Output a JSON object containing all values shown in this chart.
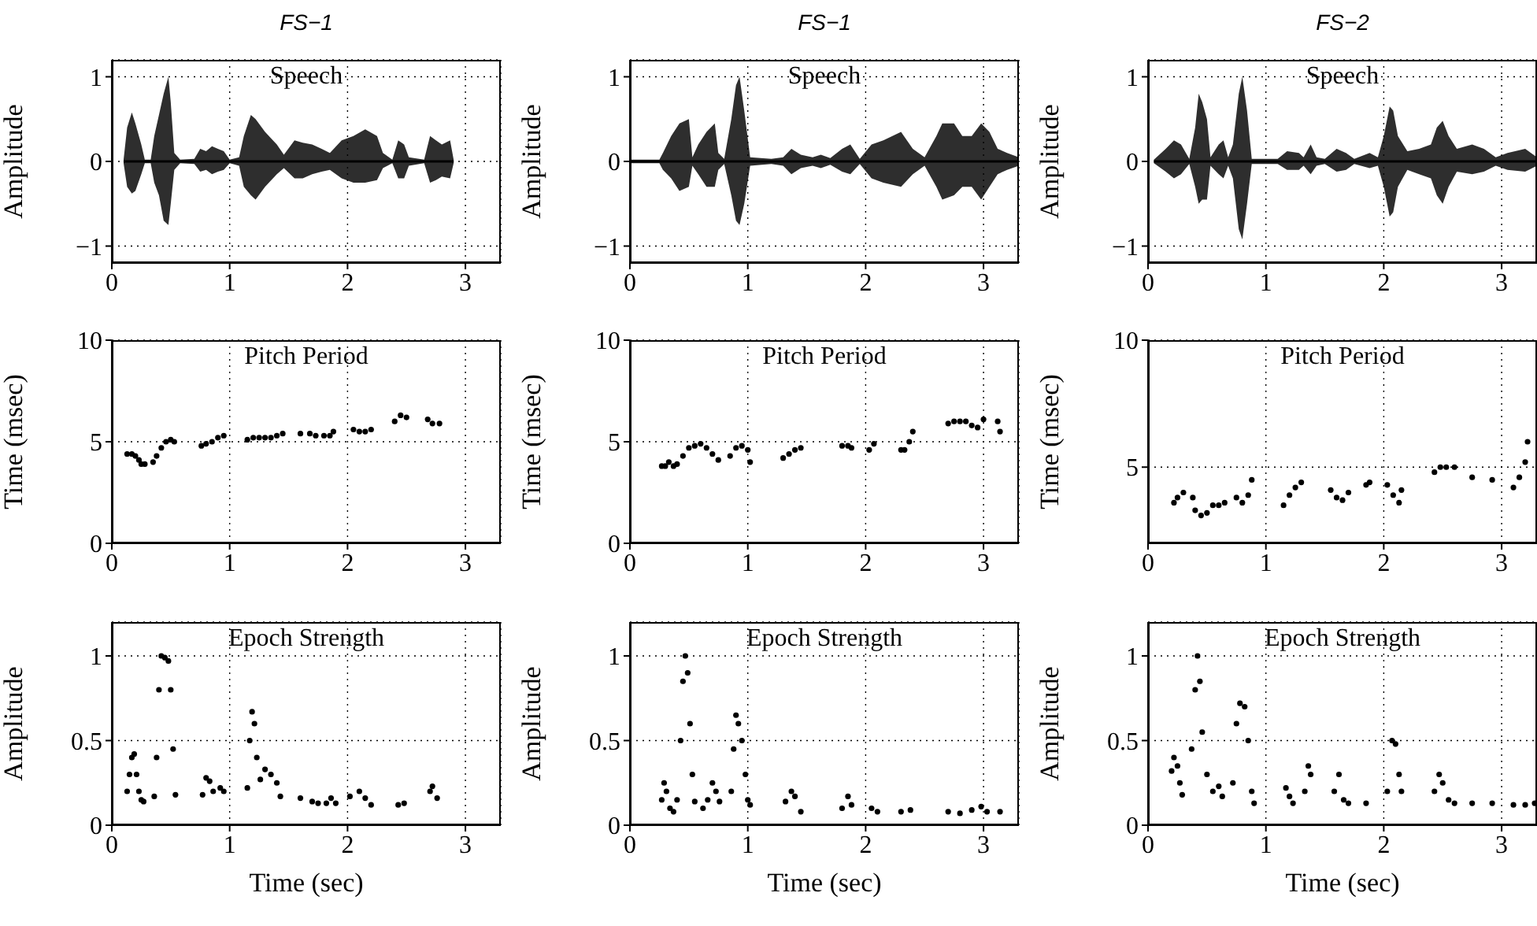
{
  "chart_data": [
    {
      "type": "line",
      "title": "FS−1",
      "ylabel": "Amplitude",
      "annotations": [
        "Speech"
      ],
      "xlim": [
        0,
        3.3
      ],
      "xticks": [
        0,
        1,
        2,
        3
      ],
      "ylim": [
        -1.2,
        1.2
      ],
      "yticks": [
        -1,
        0,
        1
      ],
      "grid": true,
      "series": [
        {
          "color": "#000000",
          "x": [
            0.1,
            0.13,
            0.17,
            0.2,
            0.25,
            0.28,
            0.33,
            0.36,
            0.4,
            0.44,
            0.48,
            0.5,
            0.53,
            0.58,
            0.7,
            0.75,
            0.8,
            0.85,
            0.9,
            0.95,
            1.0,
            1.08,
            1.12,
            1.18,
            1.22,
            1.3,
            1.4,
            1.46,
            1.55,
            1.62,
            1.7,
            1.78,
            1.85,
            1.95,
            2.05,
            2.15,
            2.25,
            2.3,
            2.38,
            2.43,
            2.48,
            2.52,
            2.65,
            2.7,
            2.75,
            2.8,
            2.87,
            2.9
          ],
          "values": [
            0,
            0,
            0,
            0,
            0,
            0,
            0,
            0,
            0,
            0,
            0,
            0,
            0,
            0,
            0,
            0,
            0,
            0,
            0,
            0,
            0,
            0,
            0,
            0,
            0,
            0,
            0,
            0,
            0,
            0,
            0,
            0,
            0,
            0,
            0,
            0,
            0,
            0,
            0,
            0,
            0,
            0,
            0,
            0,
            0,
            0,
            0,
            0
          ],
          "upper": [
            0.02,
            0.4,
            0.58,
            0.45,
            0.2,
            0.02,
            0.02,
            0.3,
            0.55,
            0.8,
            1.0,
            0.7,
            0.1,
            0.02,
            0.03,
            0.15,
            0.12,
            0.18,
            0.15,
            0.12,
            0.02,
            0.05,
            0.3,
            0.55,
            0.5,
            0.35,
            0.2,
            0.08,
            0.25,
            0.22,
            0.2,
            0.15,
            0.1,
            0.25,
            0.3,
            0.38,
            0.3,
            0.1,
            0.02,
            0.25,
            0.2,
            0.05,
            0.02,
            0.3,
            0.25,
            0.2,
            0.25,
            0.02
          ],
          "lower": [
            -0.02,
            -0.3,
            -0.38,
            -0.35,
            -0.15,
            -0.02,
            -0.02,
            -0.25,
            -0.4,
            -0.7,
            -0.75,
            -0.5,
            -0.1,
            -0.02,
            -0.03,
            -0.12,
            -0.1,
            -0.15,
            -0.12,
            -0.1,
            -0.02,
            -0.05,
            -0.3,
            -0.4,
            -0.45,
            -0.3,
            -0.15,
            -0.08,
            -0.2,
            -0.2,
            -0.15,
            -0.12,
            -0.1,
            -0.2,
            -0.25,
            -0.25,
            -0.22,
            -0.08,
            -0.02,
            -0.2,
            -0.2,
            -0.05,
            -0.02,
            -0.25,
            -0.22,
            -0.18,
            -0.2,
            -0.02
          ]
        }
      ]
    },
    {
      "type": "line",
      "title": "FS−1",
      "ylabel": "Amplitude",
      "annotations": [
        "Speech"
      ],
      "xlim": [
        0,
        3.3
      ],
      "xticks": [
        0,
        1,
        2,
        3
      ],
      "ylim": [
        -1.2,
        1.2
      ],
      "yticks": [
        -1,
        0,
        1
      ],
      "grid": true,
      "series": [
        {
          "color": "#000000",
          "x": [
            0.0,
            0.25,
            0.28,
            0.35,
            0.42,
            0.5,
            0.53,
            0.58,
            0.65,
            0.72,
            0.75,
            0.8,
            0.86,
            0.9,
            0.93,
            0.97,
            1.02,
            1.2,
            1.3,
            1.37,
            1.45,
            1.55,
            1.62,
            1.7,
            1.8,
            1.87,
            1.95,
            2.05,
            2.15,
            2.3,
            2.4,
            2.5,
            2.6,
            2.65,
            2.75,
            2.82,
            2.9,
            2.98,
            3.05,
            3.12,
            3.2,
            3.3
          ],
          "values": [
            0,
            0,
            0,
            0,
            0,
            0,
            0,
            0,
            0,
            0,
            0,
            0,
            0,
            0,
            0,
            0,
            0,
            0,
            0,
            0,
            0,
            0,
            0,
            0,
            0,
            0,
            0,
            0,
            0,
            0,
            0,
            0,
            0,
            0,
            0,
            0,
            0,
            0,
            0,
            0,
            0,
            0
          ],
          "upper": [
            0.02,
            0.02,
            0.1,
            0.3,
            0.45,
            0.5,
            0.05,
            0.2,
            0.35,
            0.45,
            0.1,
            0.03,
            0.5,
            0.9,
            1.0,
            0.6,
            0.05,
            0.03,
            0.05,
            0.15,
            0.08,
            0.05,
            0.08,
            0.04,
            0.15,
            0.2,
            0.03,
            0.2,
            0.25,
            0.35,
            0.15,
            0.05,
            0.3,
            0.45,
            0.45,
            0.3,
            0.3,
            0.45,
            0.35,
            0.15,
            0.1,
            0.05
          ],
          "lower": [
            -0.02,
            -0.02,
            -0.1,
            -0.2,
            -0.35,
            -0.3,
            -0.05,
            -0.15,
            -0.3,
            -0.3,
            -0.1,
            -0.03,
            -0.4,
            -0.7,
            -0.75,
            -0.5,
            -0.05,
            -0.03,
            -0.05,
            -0.15,
            -0.08,
            -0.05,
            -0.08,
            -0.04,
            -0.12,
            -0.15,
            -0.03,
            -0.2,
            -0.25,
            -0.3,
            -0.15,
            -0.05,
            -0.3,
            -0.45,
            -0.4,
            -0.3,
            -0.3,
            -0.45,
            -0.3,
            -0.15,
            -0.1,
            -0.05
          ]
        }
      ]
    },
    {
      "type": "line",
      "title": "FS−2",
      "ylabel": "Amplitude",
      "annotations": [
        "Speech"
      ],
      "xlim": [
        0,
        3.3
      ],
      "xticks": [
        0,
        1,
        2,
        3
      ],
      "ylim": [
        -1.2,
        1.2
      ],
      "yticks": [
        -1,
        0,
        1
      ],
      "grid": true,
      "series": [
        {
          "color": "#000000",
          "x": [
            0.05,
            0.15,
            0.22,
            0.28,
            0.35,
            0.4,
            0.43,
            0.46,
            0.5,
            0.53,
            0.6,
            0.64,
            0.68,
            0.72,
            0.77,
            0.8,
            0.84,
            0.88,
            1.0,
            1.1,
            1.18,
            1.28,
            1.32,
            1.38,
            1.43,
            1.5,
            1.6,
            1.68,
            1.75,
            1.88,
            1.95,
            2.0,
            2.05,
            2.08,
            2.12,
            2.2,
            2.3,
            2.4,
            2.45,
            2.5,
            2.55,
            2.62,
            2.75,
            2.85,
            2.95,
            3.05,
            3.2,
            3.3
          ],
          "values": [
            0,
            0,
            0,
            0,
            0,
            0,
            0,
            0,
            0,
            0,
            0,
            0,
            0,
            0,
            0,
            0,
            0,
            0,
            0,
            0,
            0,
            0,
            0,
            0,
            0,
            0,
            0,
            0,
            0,
            0,
            0,
            0,
            0,
            0,
            0,
            0,
            0,
            0,
            0,
            0,
            0,
            0,
            0,
            0,
            0,
            0,
            0,
            0
          ],
          "upper": [
            0.02,
            0.15,
            0.25,
            0.2,
            0.03,
            0.4,
            0.8,
            0.7,
            0.5,
            0.05,
            0.2,
            0.25,
            0.05,
            0.2,
            0.8,
            1.0,
            0.6,
            0.03,
            0.03,
            0.03,
            0.12,
            0.1,
            0.05,
            0.2,
            0.05,
            0.03,
            0.15,
            0.1,
            0.03,
            0.1,
            0.05,
            0.3,
            0.65,
            0.6,
            0.3,
            0.12,
            0.15,
            0.2,
            0.4,
            0.48,
            0.3,
            0.15,
            0.2,
            0.15,
            0.05,
            0.1,
            0.15,
            0.05
          ],
          "lower": [
            -0.02,
            -0.12,
            -0.2,
            -0.15,
            -0.03,
            -0.3,
            -0.5,
            -0.45,
            -0.45,
            -0.05,
            -0.15,
            -0.2,
            -0.05,
            -0.2,
            -0.8,
            -0.92,
            -0.5,
            -0.03,
            -0.03,
            -0.03,
            -0.1,
            -0.1,
            -0.05,
            -0.15,
            -0.05,
            -0.03,
            -0.12,
            -0.1,
            -0.03,
            -0.08,
            -0.05,
            -0.3,
            -0.65,
            -0.6,
            -0.3,
            -0.1,
            -0.15,
            -0.2,
            -0.4,
            -0.5,
            -0.3,
            -0.12,
            -0.15,
            -0.12,
            -0.05,
            -0.1,
            -0.12,
            -0.05
          ]
        }
      ]
    },
    {
      "type": "scatter",
      "ylabel": "Time (msec)",
      "annotations": [
        "Pitch Period"
      ],
      "xlim": [
        0,
        3.3
      ],
      "xticks": [
        0,
        1,
        2,
        3
      ],
      "ylim": [
        0,
        10
      ],
      "yticks": [
        0,
        5,
        10
      ],
      "grid": true,
      "marker": "circle",
      "series": [
        {
          "color": "#000000",
          "x": [
            0.13,
            0.17,
            0.2,
            0.23,
            0.25,
            0.28,
            0.35,
            0.38,
            0.42,
            0.46,
            0.5,
            0.53,
            0.76,
            0.8,
            0.85,
            0.9,
            0.95,
            1.15,
            1.2,
            1.25,
            1.3,
            1.35,
            1.4,
            1.45,
            1.6,
            1.68,
            1.73,
            1.8,
            1.85,
            1.88,
            2.05,
            2.1,
            2.15,
            2.2,
            2.4,
            2.45,
            2.5,
            2.68,
            2.72,
            2.78
          ],
          "values": [
            4.4,
            4.4,
            4.3,
            4.1,
            3.9,
            3.9,
            4.0,
            4.3,
            4.7,
            5.0,
            5.1,
            5.0,
            4.8,
            4.9,
            5.0,
            5.2,
            5.3,
            5.1,
            5.2,
            5.2,
            5.2,
            5.2,
            5.3,
            5.4,
            5.4,
            5.4,
            5.3,
            5.3,
            5.3,
            5.5,
            5.6,
            5.5,
            5.5,
            5.6,
            6.0,
            6.3,
            6.2,
            6.1,
            5.9,
            5.9
          ]
        }
      ]
    },
    {
      "type": "scatter",
      "ylabel": "Time (msec)",
      "annotations": [
        "Pitch Period"
      ],
      "xlim": [
        0,
        3.3
      ],
      "xticks": [
        0,
        1,
        2,
        3
      ],
      "ylim": [
        0,
        10
      ],
      "yticks": [
        0,
        5,
        10
      ],
      "grid": true,
      "marker": "circle",
      "series": [
        {
          "color": "#000000",
          "x": [
            0.27,
            0.3,
            0.33,
            0.37,
            0.4,
            0.45,
            0.5,
            0.55,
            0.6,
            0.65,
            0.7,
            0.75,
            0.85,
            0.9,
            0.95,
            1.0,
            1.02,
            1.3,
            1.35,
            1.4,
            1.45,
            1.8,
            1.85,
            1.88,
            2.03,
            2.07,
            2.3,
            2.33,
            2.37,
            2.4,
            2.7,
            2.75,
            2.8,
            2.85,
            2.9,
            2.95,
            3.0,
            3.12,
            3.14
          ],
          "values": [
            3.8,
            3.8,
            4.0,
            3.8,
            3.9,
            4.3,
            4.7,
            4.8,
            4.9,
            4.7,
            4.4,
            4.1,
            4.3,
            4.7,
            4.8,
            4.6,
            4.0,
            4.2,
            4.4,
            4.6,
            4.7,
            4.8,
            4.8,
            4.7,
            4.6,
            4.9,
            4.6,
            4.6,
            5.0,
            5.5,
            5.9,
            6.0,
            6.0,
            6.0,
            5.8,
            5.7,
            6.1,
            6.0,
            5.5
          ]
        }
      ]
    },
    {
      "type": "scatter",
      "ylabel": "Time (msec)",
      "annotations": [
        "Pitch Period"
      ],
      "xlim": [
        0,
        3.3
      ],
      "xticks": [
        0,
        1,
        2,
        3
      ],
      "ylim": [
        2,
        10
      ],
      "yticks": [
        5,
        10
      ],
      "grid": true,
      "marker": "circle",
      "series": [
        {
          "color": "#000000",
          "x": [
            0.22,
            0.25,
            0.3,
            0.38,
            0.4,
            0.45,
            0.5,
            0.55,
            0.6,
            0.65,
            0.75,
            0.8,
            0.85,
            0.88,
            1.15,
            1.2,
            1.25,
            1.3,
            1.55,
            1.6,
            1.65,
            1.7,
            1.85,
            1.88,
            2.03,
            2.08,
            2.13,
            2.15,
            2.43,
            2.48,
            2.53,
            2.6,
            2.75,
            2.92,
            3.1,
            3.15,
            3.2,
            3.22
          ],
          "values": [
            3.6,
            3.8,
            4.0,
            3.8,
            3.3,
            3.1,
            3.2,
            3.5,
            3.5,
            3.6,
            3.8,
            3.6,
            3.9,
            4.5,
            3.5,
            3.9,
            4.2,
            4.4,
            4.1,
            3.8,
            3.7,
            4.0,
            4.3,
            4.4,
            4.3,
            3.9,
            3.6,
            4.1,
            4.8,
            5.0,
            5.0,
            5.0,
            4.6,
            4.5,
            4.2,
            4.6,
            5.2,
            6.0
          ]
        }
      ]
    },
    {
      "type": "scatter",
      "ylabel": "Amplitude",
      "xlabel": "Time (sec)",
      "annotations": [
        "Epoch Strength"
      ],
      "xlim": [
        0,
        3.3
      ],
      "xticks": [
        0,
        1,
        2,
        3
      ],
      "ylim": [
        0,
        1.2
      ],
      "yticks": [
        0,
        0.5,
        1
      ],
      "grid": true,
      "marker": "circle",
      "series": [
        {
          "color": "#000000",
          "x": [
            0.13,
            0.15,
            0.17,
            0.19,
            0.21,
            0.23,
            0.25,
            0.27,
            0.36,
            0.38,
            0.4,
            0.42,
            0.45,
            0.48,
            0.5,
            0.52,
            0.54,
            0.77,
            0.8,
            0.83,
            0.86,
            0.92,
            0.95,
            1.15,
            1.17,
            1.19,
            1.21,
            1.23,
            1.26,
            1.3,
            1.35,
            1.4,
            1.43,
            1.6,
            1.7,
            1.75,
            1.82,
            1.86,
            1.9,
            2.02,
            2.1,
            2.15,
            2.2,
            2.43,
            2.48,
            2.7,
            2.72,
            2.76
          ],
          "values": [
            0.2,
            0.3,
            0.4,
            0.42,
            0.3,
            0.2,
            0.15,
            0.14,
            0.17,
            0.4,
            0.8,
            1.0,
            0.99,
            0.97,
            0.8,
            0.45,
            0.18,
            0.18,
            0.28,
            0.26,
            0.2,
            0.22,
            0.2,
            0.22,
            0.5,
            0.67,
            0.6,
            0.4,
            0.27,
            0.33,
            0.3,
            0.25,
            0.17,
            0.16,
            0.14,
            0.13,
            0.13,
            0.16,
            0.13,
            0.17,
            0.2,
            0.16,
            0.12,
            0.12,
            0.13,
            0.2,
            0.23,
            0.16
          ]
        }
      ]
    },
    {
      "type": "scatter",
      "ylabel": "Amplitude",
      "xlabel": "Time (sec)",
      "annotations": [
        "Epoch Strength"
      ],
      "xlim": [
        0,
        3.3
      ],
      "xticks": [
        0,
        1,
        2,
        3
      ],
      "ylim": [
        0,
        1.2
      ],
      "yticks": [
        0,
        0.5,
        1
      ],
      "grid": true,
      "marker": "circle",
      "series": [
        {
          "color": "#000000",
          "x": [
            0.27,
            0.29,
            0.31,
            0.34,
            0.37,
            0.4,
            0.43,
            0.45,
            0.47,
            0.49,
            0.51,
            0.53,
            0.55,
            0.62,
            0.66,
            0.7,
            0.73,
            0.76,
            0.86,
            0.88,
            0.9,
            0.92,
            0.95,
            0.98,
            1.0,
            1.02,
            1.32,
            1.37,
            1.4,
            1.45,
            1.8,
            1.85,
            1.88,
            2.05,
            2.1,
            2.3,
            2.38,
            2.7,
            2.8,
            2.9,
            2.98,
            3.03,
            3.14
          ],
          "values": [
            0.15,
            0.25,
            0.2,
            0.1,
            0.08,
            0.15,
            0.5,
            0.85,
            1.0,
            0.9,
            0.6,
            0.3,
            0.14,
            0.1,
            0.15,
            0.25,
            0.2,
            0.14,
            0.2,
            0.45,
            0.65,
            0.6,
            0.5,
            0.3,
            0.15,
            0.12,
            0.14,
            0.2,
            0.17,
            0.08,
            0.1,
            0.17,
            0.12,
            0.1,
            0.08,
            0.08,
            0.09,
            0.08,
            0.07,
            0.09,
            0.11,
            0.08,
            0.08
          ]
        }
      ]
    },
    {
      "type": "scatter",
      "ylabel": "Amplitude",
      "xlabel": "Time (sec)",
      "annotations": [
        "Epoch Strength"
      ],
      "xlim": [
        0,
        3.3
      ],
      "xticks": [
        0,
        1,
        2,
        3
      ],
      "ylim": [
        0,
        1.2
      ],
      "yticks": [
        0,
        0.5,
        1
      ],
      "grid": true,
      "marker": "circle",
      "series": [
        {
          "color": "#000000",
          "x": [
            0.2,
            0.22,
            0.25,
            0.27,
            0.29,
            0.37,
            0.4,
            0.42,
            0.44,
            0.46,
            0.5,
            0.55,
            0.6,
            0.63,
            0.72,
            0.75,
            0.78,
            0.82,
            0.85,
            0.88,
            0.9,
            1.17,
            1.2,
            1.23,
            1.33,
            1.36,
            1.38,
            1.58,
            1.62,
            1.66,
            1.7,
            1.85,
            2.03,
            2.07,
            2.1,
            2.13,
            2.15,
            2.43,
            2.47,
            2.5,
            2.55,
            2.6,
            2.75,
            2.92,
            3.1,
            3.2,
            3.28
          ],
          "values": [
            0.32,
            0.4,
            0.35,
            0.25,
            0.18,
            0.45,
            0.8,
            1.0,
            0.85,
            0.55,
            0.3,
            0.2,
            0.23,
            0.17,
            0.25,
            0.6,
            0.72,
            0.7,
            0.5,
            0.2,
            0.13,
            0.22,
            0.17,
            0.13,
            0.2,
            0.35,
            0.3,
            0.2,
            0.3,
            0.15,
            0.13,
            0.13,
            0.2,
            0.5,
            0.48,
            0.3,
            0.2,
            0.2,
            0.3,
            0.25,
            0.15,
            0.13,
            0.13,
            0.13,
            0.12,
            0.12,
            0.13
          ]
        }
      ]
    }
  ]
}
